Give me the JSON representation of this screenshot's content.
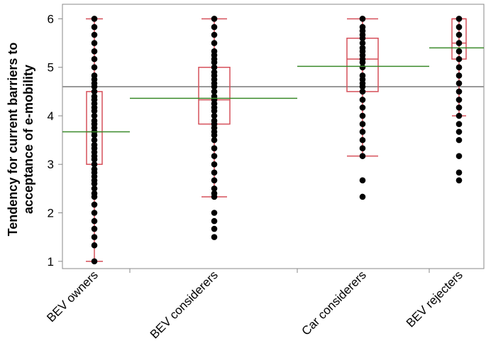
{
  "chart_data": {
    "type": "box-scatter",
    "title": "",
    "ylabel": [
      "Tendency for current barriers to",
      "acceptance of e-mobility"
    ],
    "xlabel": "",
    "ylim": [
      0.85,
      6.3
    ],
    "yticks": [
      1,
      2,
      3,
      4,
      5,
      6
    ],
    "grid": false,
    "grand_mean": 4.6,
    "colors": {
      "points": "#000000",
      "box": "#d6505a",
      "mean": "#3a8a2a",
      "grand_mean": "#999999",
      "axis": "#888888"
    },
    "groups": [
      {
        "name": "BEV owners",
        "mean": 3.67,
        "box": {
          "whisker_low": 1.0,
          "q1": 3.0,
          "median": 3.67,
          "q3": 4.5,
          "whisker_high": 6.0
        },
        "points": [
          1.0,
          1.33,
          1.5,
          1.67,
          1.83,
          2.0,
          2.17,
          2.33,
          2.4,
          2.5,
          2.6,
          2.67,
          2.75,
          2.83,
          2.9,
          3.0,
          3.1,
          3.17,
          3.25,
          3.33,
          3.4,
          3.5,
          3.6,
          3.67,
          3.75,
          3.83,
          3.9,
          4.0,
          4.1,
          4.17,
          4.25,
          4.33,
          4.4,
          4.5,
          4.6,
          4.67,
          4.75,
          4.83,
          5.0,
          5.17,
          5.33,
          5.5,
          5.67,
          5.83,
          6.0
        ]
      },
      {
        "name": "BEV considerers",
        "mean": 4.36,
        "box": {
          "whisker_low": 2.33,
          "q1": 3.83,
          "median": 4.33,
          "q3": 5.0,
          "whisker_high": 6.0
        },
        "points": [
          1.5,
          1.67,
          1.83,
          2.0,
          2.33,
          2.4,
          2.5,
          2.67,
          2.83,
          3.0,
          3.17,
          3.33,
          3.5,
          3.6,
          3.67,
          3.75,
          3.83,
          3.9,
          4.0,
          4.1,
          4.17,
          4.25,
          4.33,
          4.4,
          4.5,
          4.6,
          4.67,
          4.75,
          4.83,
          4.9,
          5.0,
          5.1,
          5.17,
          5.25,
          5.33,
          5.5,
          5.67,
          5.83,
          6.0
        ]
      },
      {
        "name": "Car considerers",
        "mean": 5.02,
        "box": {
          "whisker_low": 3.17,
          "q1": 4.5,
          "median": 5.17,
          "q3": 5.6,
          "whisker_high": 6.0
        },
        "points": [
          2.33,
          2.67,
          3.17,
          3.33,
          3.5,
          3.67,
          3.83,
          4.0,
          4.17,
          4.33,
          4.5,
          4.6,
          4.67,
          4.75,
          4.83,
          5.0,
          5.1,
          5.17,
          5.25,
          5.33,
          5.4,
          5.5,
          5.6,
          5.67,
          5.75,
          5.83,
          6.0
        ]
      },
      {
        "name": "BEV rejecters",
        "mean": 5.4,
        "box": {
          "whisker_low": 4.0,
          "q1": 5.17,
          "median": 5.5,
          "q3": 6.0,
          "whisker_high": 6.0
        },
        "points": [
          2.67,
          2.83,
          3.17,
          3.5,
          3.67,
          3.83,
          4.0,
          4.17,
          4.33,
          4.5,
          4.67,
          4.83,
          5.0,
          5.17,
          5.33,
          5.5,
          5.67,
          5.83,
          6.0
        ]
      }
    ]
  }
}
